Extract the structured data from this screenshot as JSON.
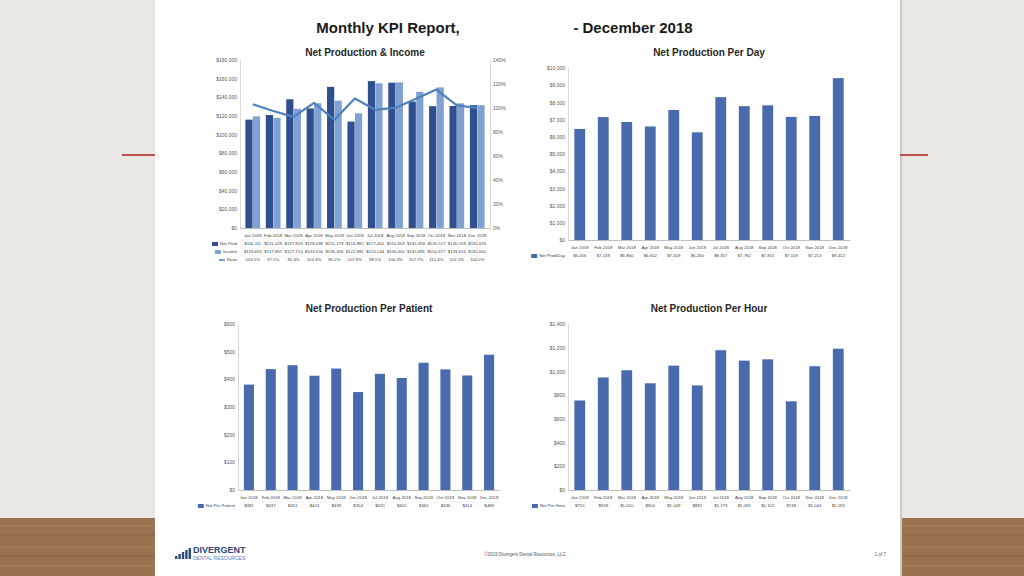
{
  "page": {
    "title": "Monthly KPI Report,",
    "title_end": "- December 2018",
    "logo": [
      "DIVERGENT",
      "DENTAL RESOURCES"
    ],
    "footer": "©2019 Divergent Dental Resources, LLC",
    "page_number": "1 of 7"
  },
  "chart_data": [
    {
      "type": "bar",
      "title": "Net Production & Income",
      "grid": false,
      "categories": [
        "Jan 2018",
        "Feb 2018",
        "Mar 2018",
        "Apr 2018",
        "May 2018",
        "Jun 2018",
        "Jul 2018",
        "Aug 2018",
        "Sep 2018",
        "Oct 2018",
        "Nov 2018",
        "Dec 2018"
      ],
      "series": [
        {
          "name": "Net Prod",
          "color": "#2f4f8f",
          "values": [
            116111,
            121029,
            137919,
            128099,
            151179,
            113982,
            157401,
            155659,
            135459,
            130517,
            130709,
            131616
          ],
          "value_labels": [
            "$116,111",
            "$121,029",
            "$137,919",
            "$128,099",
            "$151,179",
            "$113,982",
            "$157,401",
            "$155,659",
            "$135,459",
            "$130,517",
            "$130,709",
            "$131,616"
          ]
        },
        {
          "name": "Income",
          "color": "#7fa1d3",
          "values": [
            119653,
            117967,
            127714,
            133556,
            136356,
            122981,
            155044,
            156050,
            145891,
            150677,
            133616,
            131601
          ],
          "value_labels": [
            "$119,653",
            "$117,967",
            "$127,714",
            "$133,556",
            "$136,356",
            "$122,981",
            "$155,044",
            "$156,050",
            "$145,891",
            "$150,677",
            "$133,616",
            "$131,601"
          ]
        },
        {
          "name": "Ratio",
          "type": "line",
          "axis": "y2",
          "color": "#4f81bd",
          "values": [
            103.1,
            97.5,
            92.6,
            104.3,
            90.2,
            107.9,
            98.5,
            100.3,
            107.7,
            115.4,
            102.2,
            100.0
          ],
          "value_labels": [
            "103.1%",
            "97.5%",
            "92.6%",
            "104.3%",
            "90.2%",
            "107.9%",
            "98.5%",
            "100.3%",
            "107.7%",
            "115.4%",
            "102.2%",
            "100.0%"
          ]
        }
      ],
      "ylim": [
        0,
        180000
      ],
      "yticks": [
        {
          "value": 0,
          "label": "$0"
        },
        {
          "value": 20000,
          "label": "$20,000"
        },
        {
          "value": 40000,
          "label": "$40,000"
        },
        {
          "value": 60000,
          "label": "$60,000"
        },
        {
          "value": 80000,
          "label": "$80,000"
        },
        {
          "value": 100000,
          "label": "$100,000"
        },
        {
          "value": 120000,
          "label": "$120,000"
        },
        {
          "value": 140000,
          "label": "$140,000"
        },
        {
          "value": 160000,
          "label": "$160,000"
        },
        {
          "value": 180000,
          "label": "$180,000"
        }
      ],
      "y2lim": [
        0,
        140
      ],
      "y2ticks": [
        {
          "value": 0,
          "label": "0%"
        },
        {
          "value": 20,
          "label": "20%"
        },
        {
          "value": 40,
          "label": "40%"
        },
        {
          "value": 60,
          "label": "60%"
        },
        {
          "value": 80,
          "label": "80%"
        },
        {
          "value": 100,
          "label": "100%"
        },
        {
          "value": 120,
          "label": "120%"
        },
        {
          "value": 140,
          "label": "140%"
        }
      ]
    },
    {
      "type": "bar",
      "title": "Net Production Per Day",
      "grid": false,
      "categories": [
        "Jan 2018",
        "Feb 2018",
        "Mar 2018",
        "Apr 2018",
        "May 2018",
        "Jun 2018",
        "Jul 2018",
        "Aug 2018",
        "Sep 2018",
        "Oct 2018",
        "Nov 2018",
        "Dec 2018"
      ],
      "series": [
        {
          "name": "Net Prod/Day",
          "color": "#4a6aae",
          "values": [
            6456,
            7149,
            6860,
            6602,
            7559,
            6260,
            8307,
            7782,
            7831,
            7159,
            7213,
            9412
          ],
          "value_labels": [
            "$6,456",
            "$7,149",
            "$6,860",
            "$6,602",
            "$7,559",
            "$6,260",
            "$8,307",
            "$7,782",
            "$7,831",
            "$7,159",
            "$7,213",
            "$9,412"
          ]
        }
      ],
      "ylim": [
        0,
        10000
      ],
      "yticks": [
        {
          "value": 0,
          "label": "$0"
        },
        {
          "value": 1000,
          "label": "$1,000"
        },
        {
          "value": 2000,
          "label": "$2,000"
        },
        {
          "value": 3000,
          "label": "$3,000"
        },
        {
          "value": 4000,
          "label": "$4,000"
        },
        {
          "value": 5000,
          "label": "$5,000"
        },
        {
          "value": 6000,
          "label": "$6,000"
        },
        {
          "value": 7000,
          "label": "$7,000"
        },
        {
          "value": 8000,
          "label": "$8,000"
        },
        {
          "value": 9000,
          "label": "$9,000"
        },
        {
          "value": 10000,
          "label": "$10,000"
        }
      ]
    },
    {
      "type": "bar",
      "title": "Net Production Per Patient",
      "grid": false,
      "categories": [
        "Jan 2018",
        "Feb 2018",
        "Mar 2018",
        "Apr 2018",
        "May 2018",
        "Jun 2018",
        "Jul 2018",
        "Aug 2018",
        "Sep 2018",
        "Oct 2018",
        "Nov 2018",
        "Dec 2018"
      ],
      "series": [
        {
          "name": "Net Per Patient",
          "color": "#4a6aae",
          "values": [
            381,
            437,
            451,
            413,
            439,
            354,
            420,
            405,
            460,
            436,
            414,
            489
          ],
          "value_labels": [
            "$381",
            "$437",
            "$451",
            "$413",
            "$439",
            "$354",
            "$420",
            "$405",
            "$460",
            "$436",
            "$414",
            "$489"
          ]
        }
      ],
      "ylim": [
        0,
        600
      ],
      "yticks": [
        {
          "value": 0,
          "label": "$0"
        },
        {
          "value": 100,
          "label": "$100"
        },
        {
          "value": 200,
          "label": "$200"
        },
        {
          "value": 300,
          "label": "$300"
        },
        {
          "value": 400,
          "label": "$400"
        },
        {
          "value": 500,
          "label": "$500"
        },
        {
          "value": 600,
          "label": "$600"
        }
      ]
    },
    {
      "type": "bar",
      "title": "Net Production Per Hour",
      "grid": false,
      "categories": [
        "Jan 2018",
        "Feb 2018",
        "Mar 2018",
        "Apr 2018",
        "May 2018",
        "Jun 2018",
        "Jul 2018",
        "Aug 2018",
        "Sep 2018",
        "Oct 2018",
        "Nov 2018",
        "Dec 2018"
      ],
      "series": [
        {
          "name": "Net Per Hour",
          "color": "#4a6aae",
          "values": [
            755,
            949,
            1010,
            900,
            1049,
            882,
            1179,
            1091,
            1102,
            748,
            1044,
            1192
          ],
          "value_labels": [
            "$755",
            "$949",
            "$1,010",
            "$900",
            "$1,049",
            "$882",
            "$1,179",
            "$1,091",
            "$1,102",
            "$748",
            "$1,044",
            "$1,192"
          ]
        }
      ],
      "ylim": [
        0,
        1400
      ],
      "yticks": [
        {
          "value": 0,
          "label": "$0"
        },
        {
          "value": 200,
          "label": "$200"
        },
        {
          "value": 400,
          "label": "$400"
        },
        {
          "value": 600,
          "label": "$600"
        },
        {
          "value": 800,
          "label": "$800"
        },
        {
          "value": 1000,
          "label": "$1,000"
        },
        {
          "value": 1200,
          "label": "$1,200"
        },
        {
          "value": 1400,
          "label": "$1,400"
        }
      ]
    }
  ]
}
